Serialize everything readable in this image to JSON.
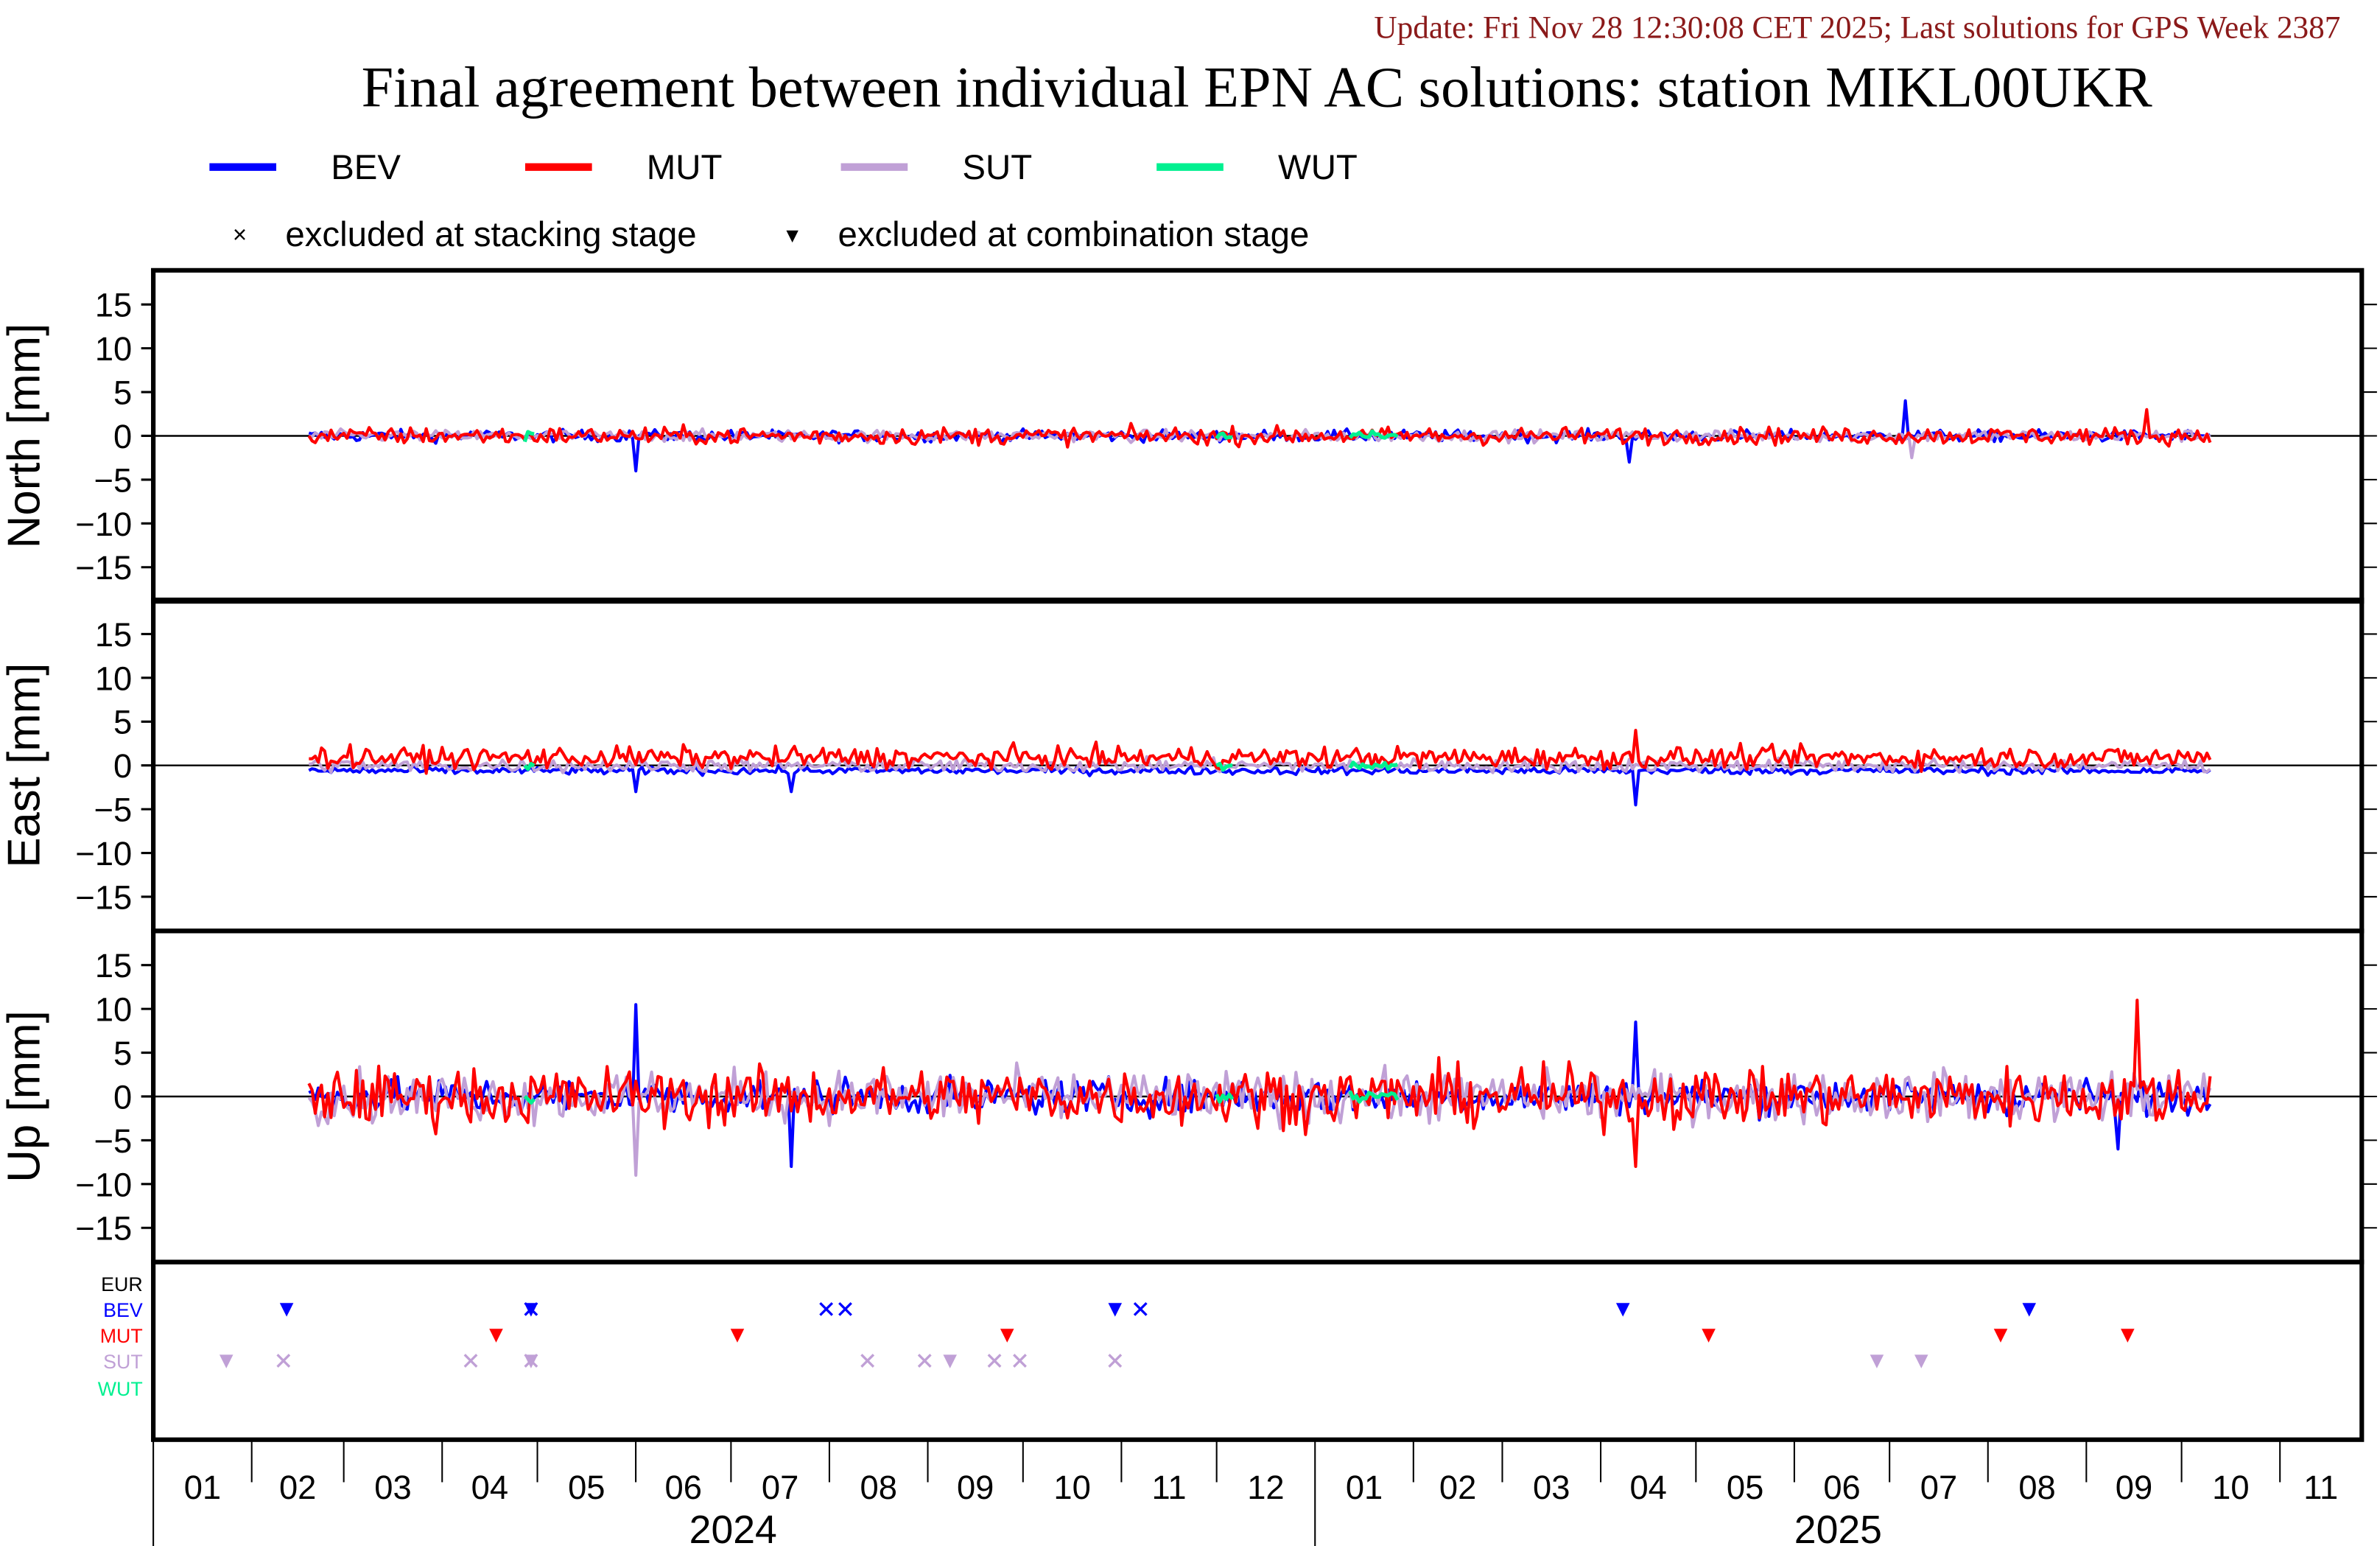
{
  "header": {
    "update": "Update: Fri Nov 28 12:30:08 CET 2025; Last solutions for GPS Week 2387",
    "title": "Final agreement between individual EPN AC solutions: station MIKL00UKR"
  },
  "legend": {
    "series": [
      {
        "name": "BEV",
        "color": "#0000ff"
      },
      {
        "name": "MUT",
        "color": "#ff0000"
      },
      {
        "name": "SUT",
        "color": "#c0a0d6"
      },
      {
        "name": "WUT",
        "color": "#00f090"
      }
    ],
    "markers": [
      {
        "symbol": "×",
        "label": "excluded at stacking stage"
      },
      {
        "symbol": "▾",
        "label": "excluded at combination stage"
      }
    ]
  },
  "chart_data": {
    "type": "line",
    "title": "Final agreement between individual EPN AC solutions: station MIKL00UKR",
    "x_range": [
      "2024-01-01",
      "2025-11-28"
    ],
    "month_ticks": [
      "01",
      "02",
      "03",
      "04",
      "05",
      "06",
      "07",
      "08",
      "09",
      "10",
      "11",
      "12",
      "01",
      "02",
      "03",
      "04",
      "05",
      "06",
      "07",
      "08",
      "09",
      "10",
      "11"
    ],
    "years": [
      {
        "label": "2024",
        "start": "2024-01-01"
      },
      {
        "label": "2025",
        "start": "2025-01-01"
      }
    ],
    "panels": [
      {
        "ylabel": "North [mm]",
        "ylim": [
          -19,
          19
        ],
        "yticks": [
          15,
          10,
          5,
          0,
          -5,
          -10,
          -15
        ],
        "noise": {
          "BEV": [
            0,
            0.6
          ],
          "MUT": [
            0,
            0.9
          ],
          "SUT": [
            0,
            0.6
          ],
          "WUT": [
            0,
            0.5
          ]
        },
        "spikes": [
          {
            "series": "BEV",
            "date": "2024-06-01",
            "value": -4
          },
          {
            "series": "BEV",
            "date": "2025-04-10",
            "value": -3
          },
          {
            "series": "BEV",
            "date": "2025-07-06",
            "value": 4
          },
          {
            "series": "MUT",
            "date": "2025-09-20",
            "value": 3
          },
          {
            "series": "SUT",
            "date": "2025-07-08",
            "value": -2.5
          }
        ]
      },
      {
        "ylabel": "East [mm]",
        "ylim": [
          -19,
          19
        ],
        "yticks": [
          15,
          10,
          5,
          0,
          -5,
          -10,
          -15
        ],
        "noise": {
          "BEV": [
            -0.6,
            0.4
          ],
          "MUT": [
            0.9,
            1.1
          ],
          "SUT": [
            0,
            0.7
          ],
          "WUT": [
            0,
            0.5
          ]
        },
        "spikes": [
          {
            "series": "BEV",
            "date": "2024-06-01",
            "value": -3
          },
          {
            "series": "BEV",
            "date": "2025-04-12",
            "value": -4.5
          },
          {
            "series": "MUT",
            "date": "2025-04-12",
            "value": 4
          },
          {
            "series": "BEV",
            "date": "2024-07-20",
            "value": -3
          }
        ]
      },
      {
        "ylabel": "Up [mm]",
        "ylim": [
          -19,
          19
        ],
        "yticks": [
          15,
          10,
          5,
          0,
          -5,
          -10,
          -15
        ],
        "noise": {
          "BEV": [
            0,
            1.8
          ],
          "MUT": [
            0,
            3.0
          ],
          "SUT": [
            0,
            2.6
          ],
          "WUT": [
            0,
            0.8
          ]
        },
        "spikes": [
          {
            "series": "BEV",
            "date": "2024-06-01",
            "value": 10.5
          },
          {
            "series": "SUT",
            "date": "2024-06-01",
            "value": -9
          },
          {
            "series": "BEV",
            "date": "2024-07-20",
            "value": -8
          },
          {
            "series": "BEV",
            "date": "2025-04-12",
            "value": 8.5
          },
          {
            "series": "MUT",
            "date": "2025-04-12",
            "value": -8
          },
          {
            "series": "MUT",
            "date": "2025-09-17",
            "value": 11
          },
          {
            "series": "BEV",
            "date": "2025-09-11",
            "value": -6
          }
        ]
      }
    ],
    "series_spans": {
      "BEV": [
        [
          "2024-02-19",
          "2025-10-10"
        ]
      ],
      "MUT": [
        [
          "2024-02-19",
          "2025-10-10"
        ]
      ],
      "SUT": [
        [
          "2024-02-19",
          "2025-10-10"
        ]
      ],
      "WUT": [
        [
          "2024-04-27",
          "2024-04-30"
        ],
        [
          "2024-12-01",
          "2024-12-06"
        ],
        [
          "2025-01-12",
          "2025-01-27"
        ]
      ]
    },
    "exclusion_panel": {
      "rows": [
        {
          "name": "EUR",
          "color": "#000000",
          "events": []
        },
        {
          "name": "BEV",
          "color": "#0000ff",
          "events": [
            {
              "date": "2024-02-12",
              "type": "combination"
            },
            {
              "date": "2024-04-29",
              "type": "stacking"
            },
            {
              "date": "2024-04-29",
              "type": "combination"
            },
            {
              "date": "2024-07-31",
              "type": "stacking"
            },
            {
              "date": "2024-08-06",
              "type": "stacking"
            },
            {
              "date": "2024-10-30",
              "type": "combination"
            },
            {
              "date": "2024-11-07",
              "type": "stacking"
            },
            {
              "date": "2025-04-08",
              "type": "combination"
            },
            {
              "date": "2025-08-14",
              "type": "combination"
            }
          ]
        },
        {
          "name": "MUT",
          "color": "#ff0000",
          "events": [
            {
              "date": "2024-04-18",
              "type": "combination"
            },
            {
              "date": "2024-07-03",
              "type": "combination"
            },
            {
              "date": "2024-09-26",
              "type": "combination"
            },
            {
              "date": "2025-05-05",
              "type": "combination"
            },
            {
              "date": "2025-08-05",
              "type": "combination"
            },
            {
              "date": "2025-09-14",
              "type": "combination"
            }
          ]
        },
        {
          "name": "SUT",
          "color": "#c0a0d6",
          "events": [
            {
              "date": "2024-01-24",
              "type": "combination"
            },
            {
              "date": "2024-02-11",
              "type": "stacking"
            },
            {
              "date": "2024-04-10",
              "type": "stacking"
            },
            {
              "date": "2024-04-29",
              "type": "stacking"
            },
            {
              "date": "2024-04-29",
              "type": "combination"
            },
            {
              "date": "2024-08-13",
              "type": "stacking"
            },
            {
              "date": "2024-08-31",
              "type": "stacking"
            },
            {
              "date": "2024-09-08",
              "type": "combination"
            },
            {
              "date": "2024-09-22",
              "type": "stacking"
            },
            {
              "date": "2024-09-30",
              "type": "stacking"
            },
            {
              "date": "2024-10-30",
              "type": "stacking"
            },
            {
              "date": "2025-06-27",
              "type": "combination"
            },
            {
              "date": "2025-07-11",
              "type": "combination"
            }
          ]
        },
        {
          "name": "WUT",
          "color": "#00f090",
          "events": []
        }
      ]
    }
  }
}
